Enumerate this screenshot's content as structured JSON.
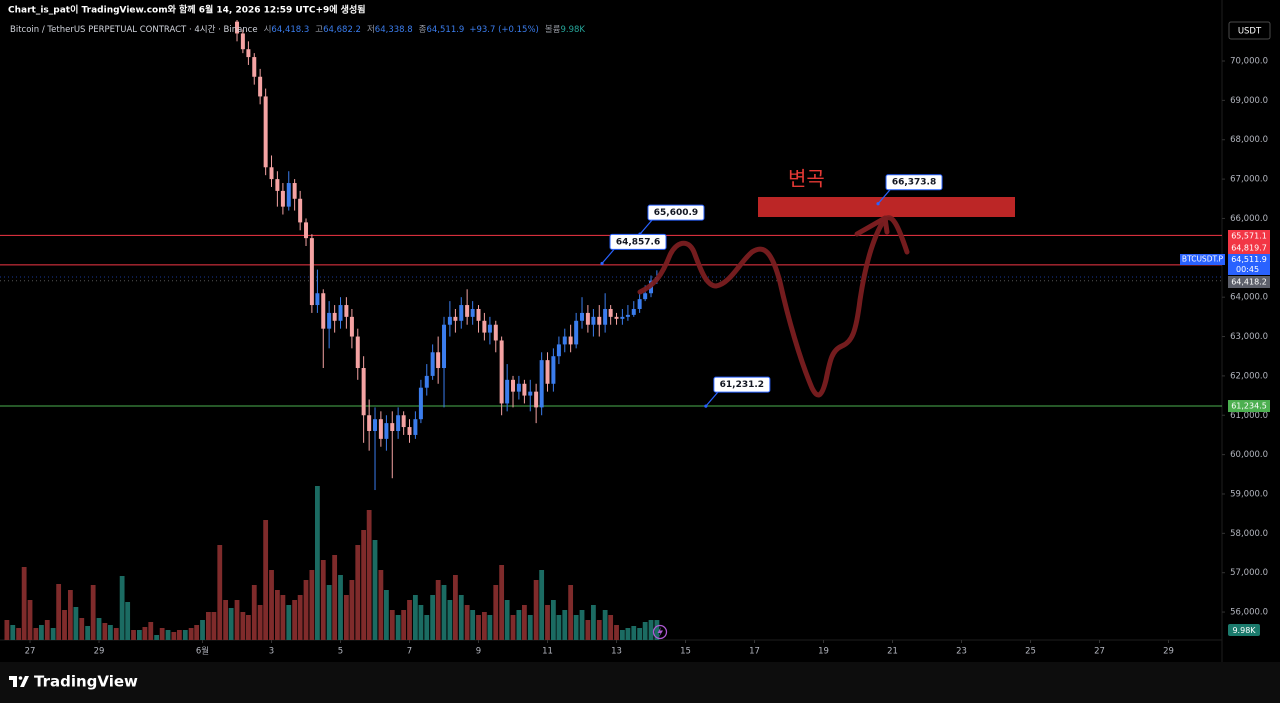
{
  "header": {
    "credit": "Chart_is_pat이 TradingView.com와 함께 6월 14, 2026 12:59 UTC+9에 생성됨",
    "currency": "USDT",
    "logo": "TradingView"
  },
  "chart_data": {
    "type": "candlestick",
    "title": "Bitcoin / TetherUS PERPETUAL CONTRACT · 4시간 · Binance",
    "legend": [
      {
        "label": "시",
        "value": "64,418.3"
      },
      {
        "label": "고",
        "value": "64,682.2"
      },
      {
        "label": "저",
        "value": "64,338.8"
      },
      {
        "label": "종",
        "value": "64,511.9"
      }
    ],
    "change": "+93.7 (+0.15%)",
    "volume_legend": {
      "label": "볼륨",
      "value": "9.98K"
    },
    "x": [
      26.33,
      26.5,
      26.67,
      26.83,
      27,
      27.17,
      27.33,
      27.5,
      27.67,
      27.83,
      28,
      28.17,
      28.33,
      28.5,
      28.67,
      28.83,
      29,
      29.17,
      29.33,
      29.5,
      29.67,
      29.83,
      30,
      30.17,
      30.33,
      30.5,
      30.67,
      30.83,
      31,
      31.17,
      31.33,
      31.5,
      31.67,
      31.83,
      32,
      32.17,
      32.33,
      32.5,
      32.67,
      32.83,
      33,
      33.17,
      33.33,
      33.5,
      33.67,
      33.83,
      34,
      34.17,
      34.33,
      34.5,
      34.67,
      34.83,
      35,
      35.17,
      35.33,
      35.5,
      35.67,
      35.83,
      36,
      36.17,
      36.33,
      36.5,
      36.67,
      36.83,
      37,
      37.17,
      37.33,
      37.5,
      37.67,
      37.83,
      38,
      38.17,
      38.33,
      38.5,
      38.67,
      38.83,
      39,
      39.17,
      39.33,
      39.5,
      39.67,
      39.83,
      40,
      40.17,
      40.33,
      40.5,
      40.67,
      40.83,
      41,
      41.17,
      41.33,
      41.5,
      41.67,
      41.83,
      42,
      42.17,
      42.33,
      42.5,
      42.67,
      42.83,
      43,
      43.17,
      43.33,
      43.5,
      43.67,
      43.83,
      44,
      44.17,
      44.33,
      44.5,
      44.67,
      44.83,
      45,
      45.17
    ],
    "open": [
      null,
      null,
      null,
      null,
      null,
      null,
      null,
      null,
      null,
      null,
      null,
      null,
      null,
      null,
      null,
      null,
      null,
      null,
      null,
      null,
      null,
      null,
      null,
      null,
      null,
      null,
      null,
      null,
      null,
      null,
      null,
      null,
      null,
      null,
      null,
      null,
      null,
      null,
      null,
      null,
      71000,
      70700,
      70300,
      70100,
      69600,
      69100,
      67300,
      67000,
      66700,
      66300,
      66900,
      66500,
      65900,
      65500,
      63800,
      64100,
      63200,
      63600,
      63400,
      63800,
      63500,
      63000,
      62200,
      61000,
      60600,
      60900,
      60400,
      60800,
      60600,
      61000,
      60700,
      60500,
      60900,
      61700,
      62000,
      62600,
      62200,
      63300,
      63500,
      63400,
      63800,
      63500,
      63700,
      63400,
      63100,
      63300,
      62900,
      61300,
      61900,
      61600,
      61800,
      61500,
      61600,
      61200,
      62400,
      61800,
      62500,
      62800,
      63000,
      62800,
      63400,
      63600,
      63300,
      63500,
      63300,
      63700,
      63500,
      63450,
      63500,
      63550,
      63700,
      63950,
      64100,
      64418.3
    ],
    "high": [
      null,
      null,
      null,
      null,
      null,
      null,
      null,
      null,
      null,
      null,
      null,
      null,
      null,
      null,
      null,
      null,
      null,
      null,
      null,
      null,
      null,
      null,
      null,
      null,
      null,
      null,
      null,
      null,
      null,
      null,
      null,
      null,
      null,
      null,
      null,
      null,
      null,
      null,
      null,
      null,
      71100,
      70800,
      70500,
      70200,
      69800,
      69300,
      67600,
      67200,
      66900,
      67200,
      67000,
      66700,
      66000,
      65600,
      64700,
      64200,
      63900,
      63800,
      64000,
      64000,
      63700,
      63200,
      62500,
      61400,
      61200,
      61100,
      61000,
      61100,
      61200,
      61100,
      60900,
      61100,
      61900,
      62300,
      62800,
      63000,
      63500,
      63900,
      63700,
      64000,
      64200,
      63900,
      63800,
      63600,
      63500,
      63400,
      63000,
      62300,
      62000,
      62000,
      61900,
      61900,
      61800,
      62600,
      62600,
      62700,
      63000,
      63200,
      63300,
      63600,
      64000,
      63800,
      63700,
      63800,
      64100,
      63800,
      63600,
      63700,
      63800,
      63900,
      64100,
      64300,
      64550,
      64682.2
    ],
    "low": [
      null,
      null,
      null,
      null,
      null,
      null,
      null,
      null,
      null,
      null,
      null,
      null,
      null,
      null,
      null,
      null,
      null,
      null,
      null,
      null,
      null,
      null,
      null,
      null,
      null,
      null,
      null,
      null,
      null,
      null,
      null,
      null,
      null,
      null,
      null,
      null,
      null,
      null,
      null,
      null,
      70500,
      70200,
      69900,
      69400,
      68900,
      67100,
      66800,
      66300,
      66100,
      66200,
      66200,
      65700,
      65300,
      63600,
      63600,
      62200,
      62700,
      63100,
      63200,
      63200,
      62700,
      61900,
      60300,
      60100,
      59100,
      60200,
      60100,
      59400,
      60400,
      60500,
      60300,
      60400,
      60800,
      61500,
      61900,
      61800,
      61200,
      63000,
      63100,
      63200,
      63300,
      63300,
      63100,
      62900,
      62800,
      62600,
      61000,
      61100,
      61200,
      61400,
      61300,
      61100,
      60800,
      61000,
      61600,
      61600,
      62300,
      62600,
      62600,
      62700,
      63200,
      63100,
      63000,
      63000,
      63100,
      63300,
      63300,
      63300,
      63400,
      63500,
      63600,
      63900,
      64000,
      64338.8
    ],
    "close": [
      null,
      null,
      null,
      null,
      null,
      null,
      null,
      null,
      null,
      null,
      null,
      null,
      null,
      null,
      null,
      null,
      null,
      null,
      null,
      null,
      null,
      null,
      null,
      null,
      null,
      null,
      null,
      null,
      null,
      null,
      null,
      null,
      null,
      null,
      null,
      null,
      null,
      null,
      null,
      null,
      70700,
      70300,
      70100,
      69600,
      69100,
      67300,
      67000,
      66700,
      66300,
      66900,
      66500,
      65900,
      65500,
      63800,
      64100,
      63200,
      63600,
      63400,
      63800,
      63500,
      63000,
      62200,
      61000,
      60600,
      60900,
      60400,
      60800,
      60600,
      61000,
      60700,
      60500,
      60900,
      61700,
      62000,
      62600,
      62200,
      63300,
      63500,
      63400,
      63800,
      63500,
      63700,
      63400,
      63100,
      63300,
      62900,
      61300,
      61900,
      61600,
      61800,
      61500,
      61600,
      61200,
      62400,
      61800,
      62500,
      62800,
      63000,
      62800,
      63400,
      63600,
      63300,
      63500,
      63300,
      63700,
      63500,
      63450,
      63500,
      63550,
      63700,
      63950,
      64100,
      64418.3,
      64511.9
    ],
    "up_color": "#3b7ded",
    "down_color": "#f5a3a3",
    "volume": {
      "values": [
        10000,
        7500,
        6000,
        36500,
        20000,
        6000,
        7500,
        10000,
        6000,
        28000,
        15000,
        25000,
        16500,
        11000,
        7000,
        27500,
        11000,
        8500,
        7500,
        6000,
        32000,
        19000,
        5000,
        5000,
        6500,
        9000,
        2500,
        6000,
        5000,
        4000,
        5000,
        5000,
        6000,
        7500,
        10000,
        14000,
        14000,
        47500,
        20000,
        16000,
        20000,
        14000,
        12500,
        27500,
        17500,
        60000,
        35000,
        25000,
        22500,
        17500,
        20000,
        22500,
        30000,
        35000,
        77000,
        40000,
        27500,
        42500,
        32500,
        22500,
        30000,
        47500,
        55000,
        65000,
        50000,
        35000,
        25000,
        15000,
        12500,
        15000,
        20000,
        22500,
        17500,
        12500,
        22500,
        30000,
        27500,
        20000,
        32500,
        22500,
        17500,
        15000,
        12500,
        14000,
        12500,
        27500,
        37500,
        20000,
        12500,
        15000,
        17500,
        12500,
        30000,
        35000,
        17500,
        20000,
        12500,
        15000,
        27500,
        12500,
        15000,
        10000,
        17500,
        10000,
        15000,
        12500,
        7500,
        5000,
        6000,
        7000,
        6000,
        9000,
        10000,
        9980
      ],
      "up": [
        false,
        true,
        false,
        false,
        false,
        false,
        true,
        false,
        true,
        false,
        false,
        false,
        true,
        false,
        true,
        false,
        true,
        false,
        true,
        false,
        true,
        true,
        false,
        true,
        false,
        false,
        true,
        false,
        true,
        false,
        false,
        true,
        false,
        false,
        true,
        false,
        false,
        false,
        false,
        true,
        false,
        false,
        false,
        false,
        false,
        false,
        false,
        false,
        false,
        true,
        false,
        false,
        false,
        false,
        true,
        false,
        true,
        false,
        true,
        false,
        false,
        false,
        false,
        false,
        true,
        false,
        true,
        false,
        true,
        false,
        false,
        true,
        true,
        true,
        true,
        false,
        true,
        true,
        false,
        true,
        false,
        true,
        false,
        false,
        true,
        false,
        false,
        true,
        false,
        true,
        false,
        true,
        false,
        true,
        false,
        true,
        true,
        true,
        false,
        true,
        true,
        false,
        true,
        false,
        true,
        false,
        false,
        true,
        true,
        true,
        true,
        true,
        true,
        true
      ],
      "up_color": "#1b6b62",
      "down_color": "#7f2b2b",
      "ylim": [
        0,
        310000
      ],
      "last_value_label": "9.98K"
    },
    "xlim": [
      26.13,
      61.55
    ],
    "xticks": [
      27,
      29,
      {
        "value": 32,
        "label": "6월"
      },
      {
        "value": 34,
        "label": "3"
      },
      {
        "value": 36,
        "label": "5"
      },
      {
        "value": 38,
        "label": "7"
      },
      {
        "value": 40,
        "label": "9"
      },
      {
        "value": 42,
        "label": "11"
      },
      {
        "value": 44,
        "label": "13"
      },
      {
        "value": 46,
        "label": "15"
      },
      {
        "value": 48,
        "label": "17"
      },
      {
        "value": 50,
        "label": "19"
      },
      {
        "value": 52,
        "label": "21"
      },
      {
        "value": 54,
        "label": "23"
      },
      {
        "value": 56,
        "label": "25"
      },
      {
        "value": 58,
        "label": "27"
      },
      {
        "value": 60,
        "label": "29"
      }
    ],
    "ylim": [
      55290,
      71042
    ],
    "yticks": [
      {
        "value": 56000,
        "label": "56,000.0"
      },
      {
        "value": 57000,
        "label": "57,000.0"
      },
      {
        "value": 58000,
        "label": "58,000.0"
      },
      {
        "value": 59000,
        "label": "59,000.0"
      },
      {
        "value": 60000,
        "label": "60,000.0"
      },
      {
        "value": 61000,
        "label": "61,000.0"
      },
      {
        "value": 62000,
        "label": "62,000.0"
      },
      {
        "value": 63000,
        "label": "63,000.0"
      },
      {
        "value": 64000,
        "label": "64,000.0"
      },
      {
        "value": 65000,
        "label": "65,000.0"
      },
      {
        "value": 66000,
        "label": "66,000.0"
      },
      {
        "value": 67000,
        "label": "67,000.0"
      },
      {
        "value": 68000,
        "label": "68,000.0"
      },
      {
        "value": 69000,
        "label": "69,000.0"
      },
      {
        "value": 70000,
        "label": "70,000.0"
      }
    ],
    "grid": false,
    "hlines": [
      {
        "value": 65571.1,
        "label": "65,571.1",
        "color": "#f23645"
      },
      {
        "value": 64819.7,
        "label": "64,819.7",
        "color": "#f23645"
      },
      {
        "value": 61234.5,
        "label": "61,234.5",
        "color": "#4caf50"
      }
    ],
    "last_price": {
      "value": 64511.9,
      "label": "64,511.9",
      "symbol": "BTCUSDT.P",
      "countdown": "00:45",
      "color": "#2962ff"
    },
    "prev_close": {
      "value": 64418.2,
      "label": "64,418.2",
      "color": "#5d606b"
    },
    "annotations": [
      {
        "x": 44.68,
        "value": 65600.9,
        "label": "65,600.9"
      },
      {
        "x": 43.58,
        "value": 64857.6,
        "label": "64,857.6"
      },
      {
        "x": 46.59,
        "value": 61231.2,
        "label": "61,231.2"
      },
      {
        "x": 51.58,
        "value": 66373.8,
        "label": "66,373.8"
      }
    ],
    "note": "변곡"
  }
}
